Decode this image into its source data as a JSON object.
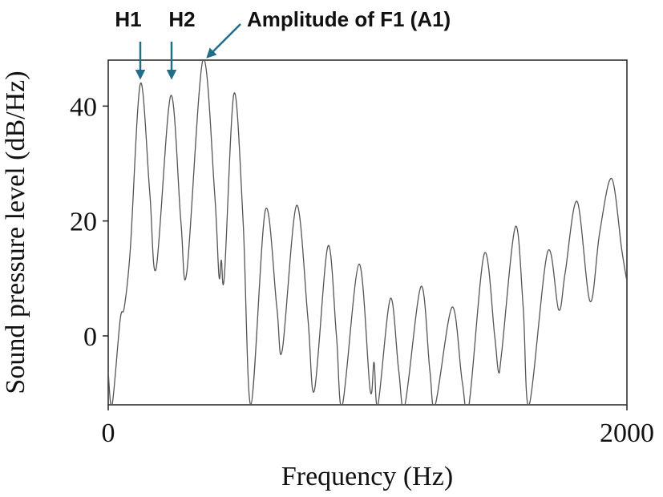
{
  "chart_data": {
    "type": "line",
    "x_label": "Frequency (Hz)",
    "y_label": "Sound pressure level (dB/Hz)",
    "annotations": [
      "H1",
      "H2",
      "Amplitude of F1 (A1)"
    ],
    "annotation_color": "#1f6f8b",
    "xlim": [
      0,
      2000
    ],
    "xticks": [
      0,
      2000
    ],
    "ylim": [
      -12,
      48
    ],
    "yticks": [
      0,
      20,
      40
    ],
    "series": [
      {
        "color": "#555555",
        "x": [
          0,
          15,
          46,
          62,
          85,
          124,
          160,
          185,
          241,
          280,
          303,
          365,
          410,
          427,
          436,
          448,
          485,
          520,
          550,
          606,
          650,
          671,
          726,
          770,
          795,
          847,
          880,
          903,
          967,
          1010,
          1025,
          1040,
          1088,
          1120,
          1144,
          1206,
          1240,
          1261,
          1326,
          1365,
          1391,
          1450,
          1490,
          1505,
          1518,
          1570,
          1600,
          1623,
          1694,
          1737,
          1762,
          1808,
          1858,
          1895,
          1941,
          1980,
          2000
        ],
        "values": [
          -6.3,
          -12,
          2.8,
          5,
          15,
          43.9,
          25,
          11.8,
          41.8,
          20,
          11.1,
          48,
          25,
          10.4,
          13.2,
          10.5,
          42.2,
          20,
          -12,
          21.9,
          5,
          -2.5,
          22.7,
          3,
          -9.5,
          15.6,
          0,
          -12,
          12.5,
          -9.5,
          -4.6,
          -12,
          6.5,
          -6,
          -12,
          8.6,
          -6,
          -12,
          5,
          -8,
          -12,
          14.3,
          0,
          -6.3,
          -2.5,
          19,
          5,
          -12,
          14.6,
          4.5,
          11,
          23.4,
          6,
          18,
          27.4,
          15,
          9.5
        ]
      }
    ]
  }
}
